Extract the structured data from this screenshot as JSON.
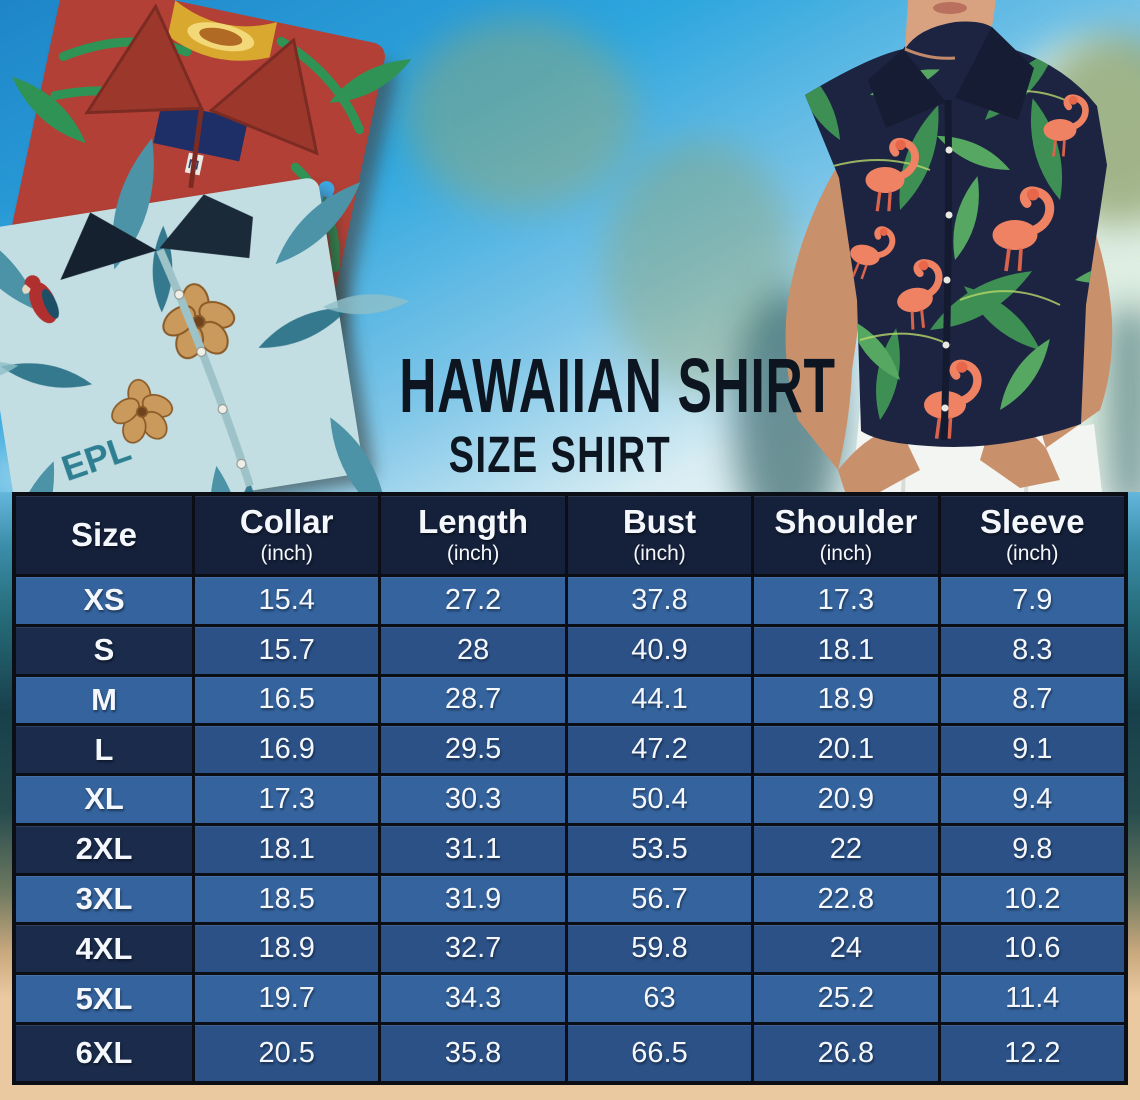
{
  "title": {
    "line1": "HAWAIIAN SHIRT",
    "line2": "SIZE SHIRT"
  },
  "chart_data": {
    "type": "table",
    "title": "HAWAIIAN SHIRT SIZE SHIRT",
    "columns": [
      "Size",
      "Collar (inch)",
      "Length (inch)",
      "Bust (inch)",
      "Shoulder (inch)",
      "Sleeve (inch)"
    ],
    "rows": [
      [
        "XS",
        15.4,
        27.2,
        37.8,
        17.3,
        7.9
      ],
      [
        "S",
        15.7,
        28,
        40.9,
        18.1,
        8.3
      ],
      [
        "M",
        16.5,
        28.7,
        44.1,
        18.9,
        8.7
      ],
      [
        "L",
        16.9,
        29.5,
        47.2,
        20.1,
        9.1
      ],
      [
        "XL",
        17.3,
        30.3,
        50.4,
        20.9,
        9.4
      ],
      [
        "2XL",
        18.1,
        31.1,
        53.5,
        22,
        9.8
      ],
      [
        "3XL",
        18.5,
        31.9,
        56.7,
        22.8,
        10.2
      ],
      [
        "4XL",
        18.9,
        32.7,
        59.8,
        24,
        10.6
      ],
      [
        "5XL",
        19.7,
        34.3,
        63,
        25.2,
        11.4
      ],
      [
        "6XL",
        20.5,
        35.8,
        66.5,
        26.8,
        12.2
      ]
    ]
  },
  "table": {
    "columns": [
      {
        "label": "Size",
        "unit": ""
      },
      {
        "label": "Collar",
        "unit": "(inch)"
      },
      {
        "label": "Length",
        "unit": "(inch)"
      },
      {
        "label": "Bust",
        "unit": "(inch)"
      },
      {
        "label": "Shoulder",
        "unit": "(inch)"
      },
      {
        "label": "Sleeve",
        "unit": "(inch)"
      }
    ],
    "rows": [
      {
        "size": "XS",
        "values": [
          "15.4",
          "27.2",
          "37.8",
          "17.3",
          "7.9"
        ]
      },
      {
        "size": "S",
        "values": [
          "15.7",
          "28",
          "40.9",
          "18.1",
          "8.3"
        ]
      },
      {
        "size": "M",
        "values": [
          "16.5",
          "28.7",
          "44.1",
          "18.9",
          "8.7"
        ]
      },
      {
        "size": "L",
        "values": [
          "16.9",
          "29.5",
          "47.2",
          "20.1",
          "9.1"
        ]
      },
      {
        "size": "XL",
        "values": [
          "17.3",
          "30.3",
          "50.4",
          "20.9",
          "9.4"
        ]
      },
      {
        "size": "2XL",
        "values": [
          "18.1",
          "31.1",
          "53.5",
          "22",
          "9.8"
        ]
      },
      {
        "size": "3XL",
        "values": [
          "18.5",
          "31.9",
          "56.7",
          "22.8",
          "10.2"
        ]
      },
      {
        "size": "4XL",
        "values": [
          "18.9",
          "32.7",
          "59.8",
          "24",
          "10.6"
        ]
      },
      {
        "size": "5XL",
        "values": [
          "19.7",
          "34.3",
          "63",
          "25.2",
          "11.4"
        ]
      },
      {
        "size": "6XL",
        "values": [
          "20.5",
          "35.8",
          "66.5",
          "26.8",
          "12.2"
        ]
      }
    ]
  },
  "decor": {
    "teal_shirt_print_text": "EPL",
    "red_shirt_size_tag": "M"
  },
  "colors": {
    "header_navy": "#15213b",
    "row_light_blue": "#34639e",
    "row_dark_blue": "#2b5187",
    "size_dark_navy": "#1a2b4c",
    "table_border": "#0b0e14",
    "sand": "#eac9a0",
    "sky_blue": "#2ea6de",
    "title_text": "#0c1520",
    "red_shirt": "#b24036",
    "teal_shirt": "#c2dee2",
    "navy_flamingo_shirt": "#1d2442"
  }
}
